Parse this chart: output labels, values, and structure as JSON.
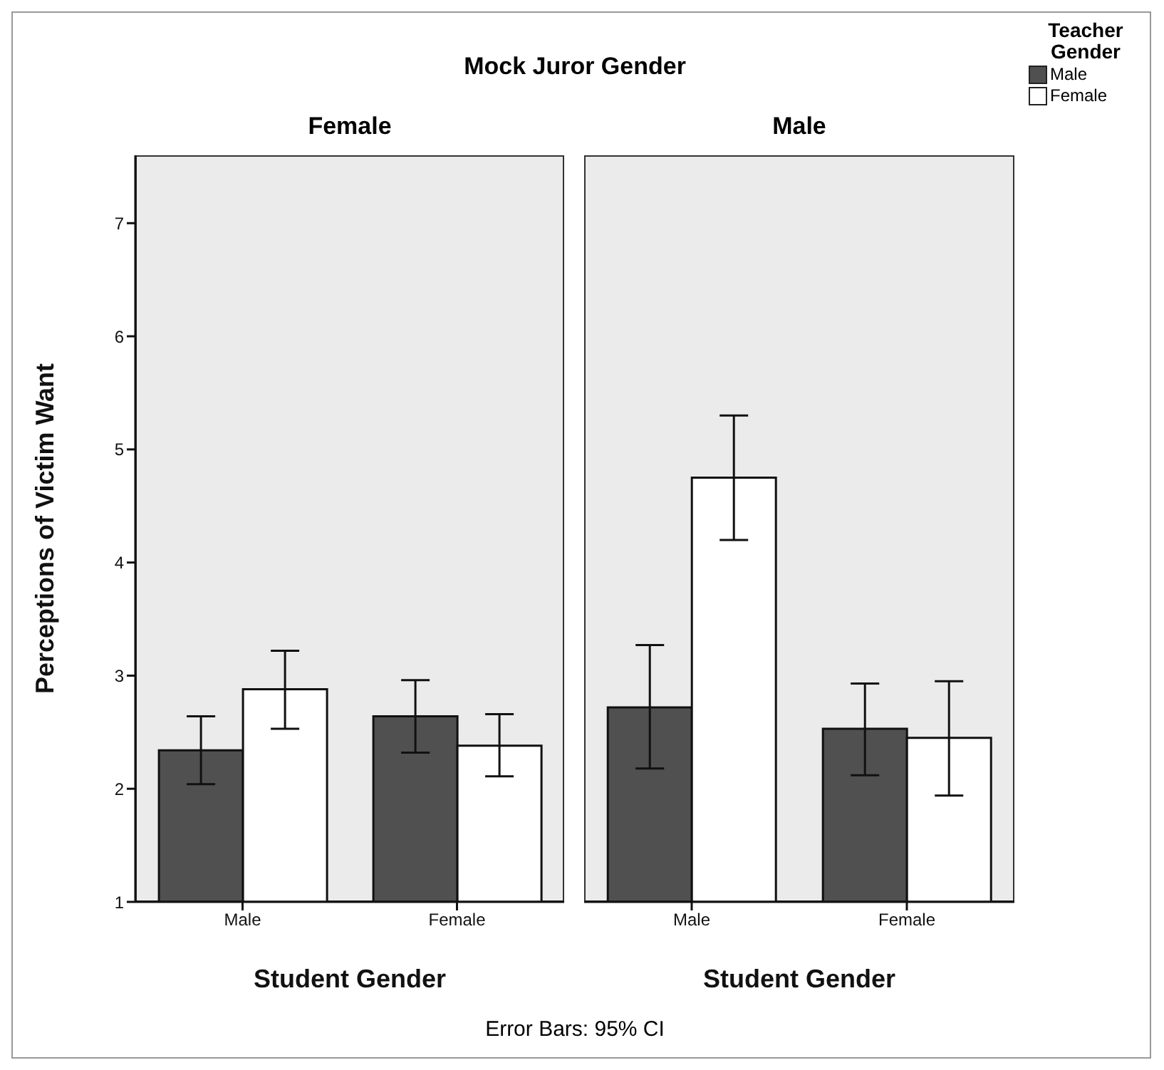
{
  "chart_data": [
    {
      "type": "bar",
      "title": "Female",
      "ylabel": "Perceptions of Victim Want",
      "xlabel": "Student Gender",
      "categories": [
        "Male",
        "Female"
      ],
      "ylim": [
        1,
        7.6
      ],
      "yticks": [
        1,
        2,
        3,
        4,
        5,
        6,
        7
      ],
      "grid": false,
      "legend": false,
      "annotations": [
        "Mock Juror Gender",
        "Error Bars: 95% CI"
      ],
      "series": [
        {
          "color": "#505050",
          "values": [
            2.34,
            2.64
          ],
          "errors": [
            [
              2.04,
              2.64
            ],
            [
              2.32,
              2.96
            ]
          ]
        },
        {
          "color": "#ffffff",
          "values": [
            2.88,
            2.38
          ],
          "errors": [
            [
              2.53,
              3.22
            ],
            [
              2.11,
              2.66
            ]
          ]
        }
      ]
    },
    {
      "type": "bar",
      "title": "Male",
      "xlabel": "Student Gender",
      "categories": [
        "Male",
        "Female"
      ],
      "ylim": [
        1,
        7.6
      ],
      "yticks": [
        1,
        2,
        3,
        4,
        5,
        6,
        7
      ],
      "grid": false,
      "tick_labels": "x",
      "legend": "top right",
      "legend_title": "Teacher Gender",
      "series": [
        {
          "name": "Male",
          "color": "#505050",
          "values": [
            2.72,
            2.53
          ],
          "errors": [
            [
              2.18,
              3.27
            ],
            [
              2.12,
              2.93
            ]
          ]
        },
        {
          "name": "Female",
          "color": "#ffffff",
          "values": [
            4.75,
            2.45
          ],
          "errors": [
            [
              4.2,
              5.3
            ],
            [
              1.94,
              2.95
            ]
          ]
        }
      ]
    }
  ]
}
